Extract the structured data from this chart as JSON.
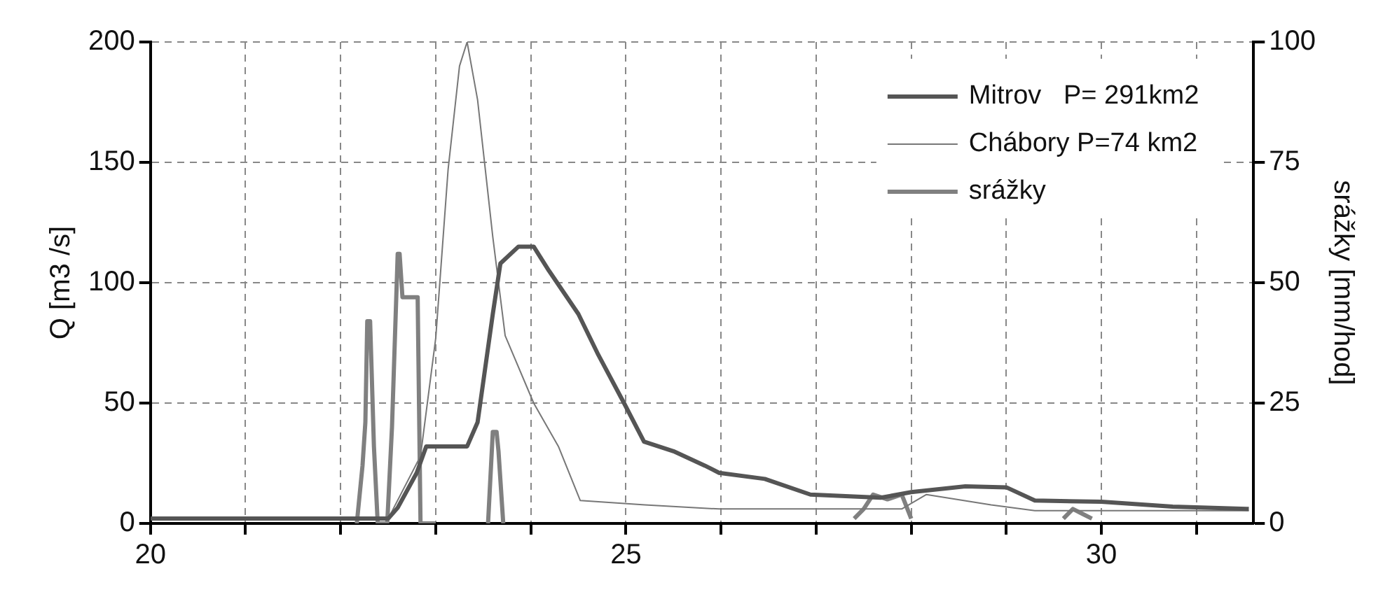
{
  "chart_data": {
    "type": "line",
    "xlim": [
      20,
      31.6
    ],
    "xticks": [
      20,
      {
        "value": 21,
        "label": null
      },
      {
        "value": 22,
        "label": null
      },
      {
        "value": 23,
        "label": null
      },
      {
        "value": 24,
        "label": null
      },
      25,
      {
        "value": 26,
        "label": null
      },
      {
        "value": 27,
        "label": null
      },
      {
        "value": 28,
        "label": null
      },
      {
        "value": 29,
        "label": null
      },
      30,
      {
        "value": 31,
        "label": null
      }
    ],
    "ylim": [
      0,
      200
    ],
    "yticks": [
      0,
      50,
      100,
      150,
      200
    ],
    "y2lim": [
      0,
      100
    ],
    "y2ticks": [
      0,
      25,
      50,
      75,
      100
    ],
    "ylabel": "Q [m3 /s]",
    "y2label": "srážky [mm/hod]",
    "grid": true,
    "legend": "top right",
    "line_style": "solid",
    "marker": "none",
    "series": [
      {
        "name": "Mitrov   P= 291km2",
        "color": "#555555",
        "x": [
          20,
          22.5,
          22.6,
          22.8,
          22.9,
          23.33,
          23.44,
          23.6,
          23.68,
          23.87,
          24.03,
          24.19,
          24.5,
          24.71,
          24.98,
          25.19,
          25.5,
          25.83,
          25.98,
          26.46,
          26.94,
          27.68,
          28.0,
          28.57,
          29.0,
          29.3,
          30.0,
          30.75,
          31.55
        ],
        "values": [
          2,
          2,
          6.5,
          21,
          32,
          32,
          42,
          87,
          108,
          115,
          115,
          105,
          87,
          70,
          50,
          34,
          30,
          24,
          21,
          18.5,
          12,
          10.7,
          13,
          15.4,
          15,
          9.5,
          9,
          7,
          6
        ]
      },
      {
        "name": "Chábory P=74 km2",
        "color": "#777777",
        "x": [
          20,
          22.5,
          22.84,
          23.0,
          23.13,
          23.25,
          23.33,
          23.44,
          23.6,
          23.73,
          24.03,
          24.29,
          24.52,
          25.2,
          25.98,
          27.9,
          28.16,
          28.84,
          29.3,
          31.55
        ],
        "values": [
          2,
          2,
          28,
          77,
          147,
          190,
          200,
          176,
          119,
          78,
          50,
          32,
          9.5,
          7.7,
          6,
          6,
          12,
          7.7,
          5.3,
          5.3
        ]
      },
      {
        "name": "srážky",
        "color": "#808080",
        "axis": "y2",
        "x": [
          22.17,
          22.23,
          22.26,
          22.28,
          22.31,
          22.35,
          22.39,
          22.45,
          22.49,
          22.54,
          22.6,
          22.62,
          22.65,
          22.81,
          22.84,
          23.0,
          23.2,
          23.55,
          23.6,
          23.64,
          23.66,
          23.71,
          25,
          27.4,
          27.5,
          27.6,
          27.75,
          27.9,
          28.0,
          29,
          29.6,
          29.7,
          29.8,
          29.9
        ],
        "values": [
          0,
          12,
          21,
          42,
          42,
          16,
          0,
          0,
          0,
          20,
          56,
          56,
          47,
          47,
          0,
          0,
          null,
          0,
          19,
          19,
          15,
          0,
          null,
          1,
          3,
          6,
          5,
          6,
          1,
          null,
          1,
          3,
          2,
          1
        ]
      }
    ]
  }
}
